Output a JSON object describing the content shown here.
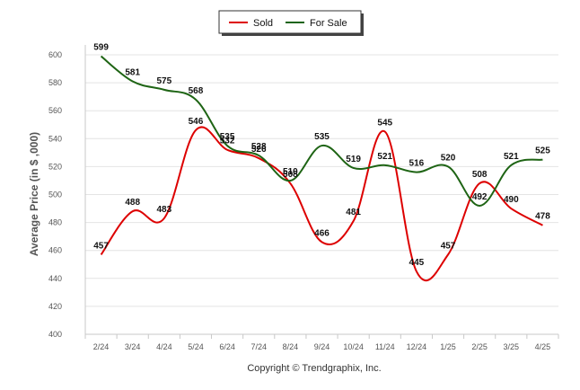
{
  "chart_data": {
    "type": "line",
    "categories": [
      "2/24",
      "3/24",
      "4/24",
      "5/24",
      "6/24",
      "7/24",
      "8/24",
      "9/24",
      "10/24",
      "11/24",
      "12/24",
      "1/25",
      "2/25",
      "3/25",
      "4/25"
    ],
    "series": [
      {
        "name": "Sold",
        "color": "#dd0000",
        "values": [
          457,
          488,
          483,
          546,
          532,
          526,
          508,
          466,
          481,
          545,
          445,
          457,
          508,
          490,
          478
        ]
      },
      {
        "name": "For Sale",
        "color": "#1e6414",
        "values": [
          599,
          581,
          575,
          568,
          535,
          528,
          510,
          535,
          519,
          521,
          516,
          520,
          492,
          521,
          525
        ]
      }
    ],
    "ylabel": "Average Price (in $ ,000)",
    "yticks": [
      400,
      420,
      440,
      460,
      480,
      500,
      520,
      540,
      560,
      580,
      600
    ],
    "ylim": [
      400,
      600
    ],
    "grid": true,
    "legend_position": "top-center",
    "credit": "Copyright © Trendgraphix, Inc."
  }
}
